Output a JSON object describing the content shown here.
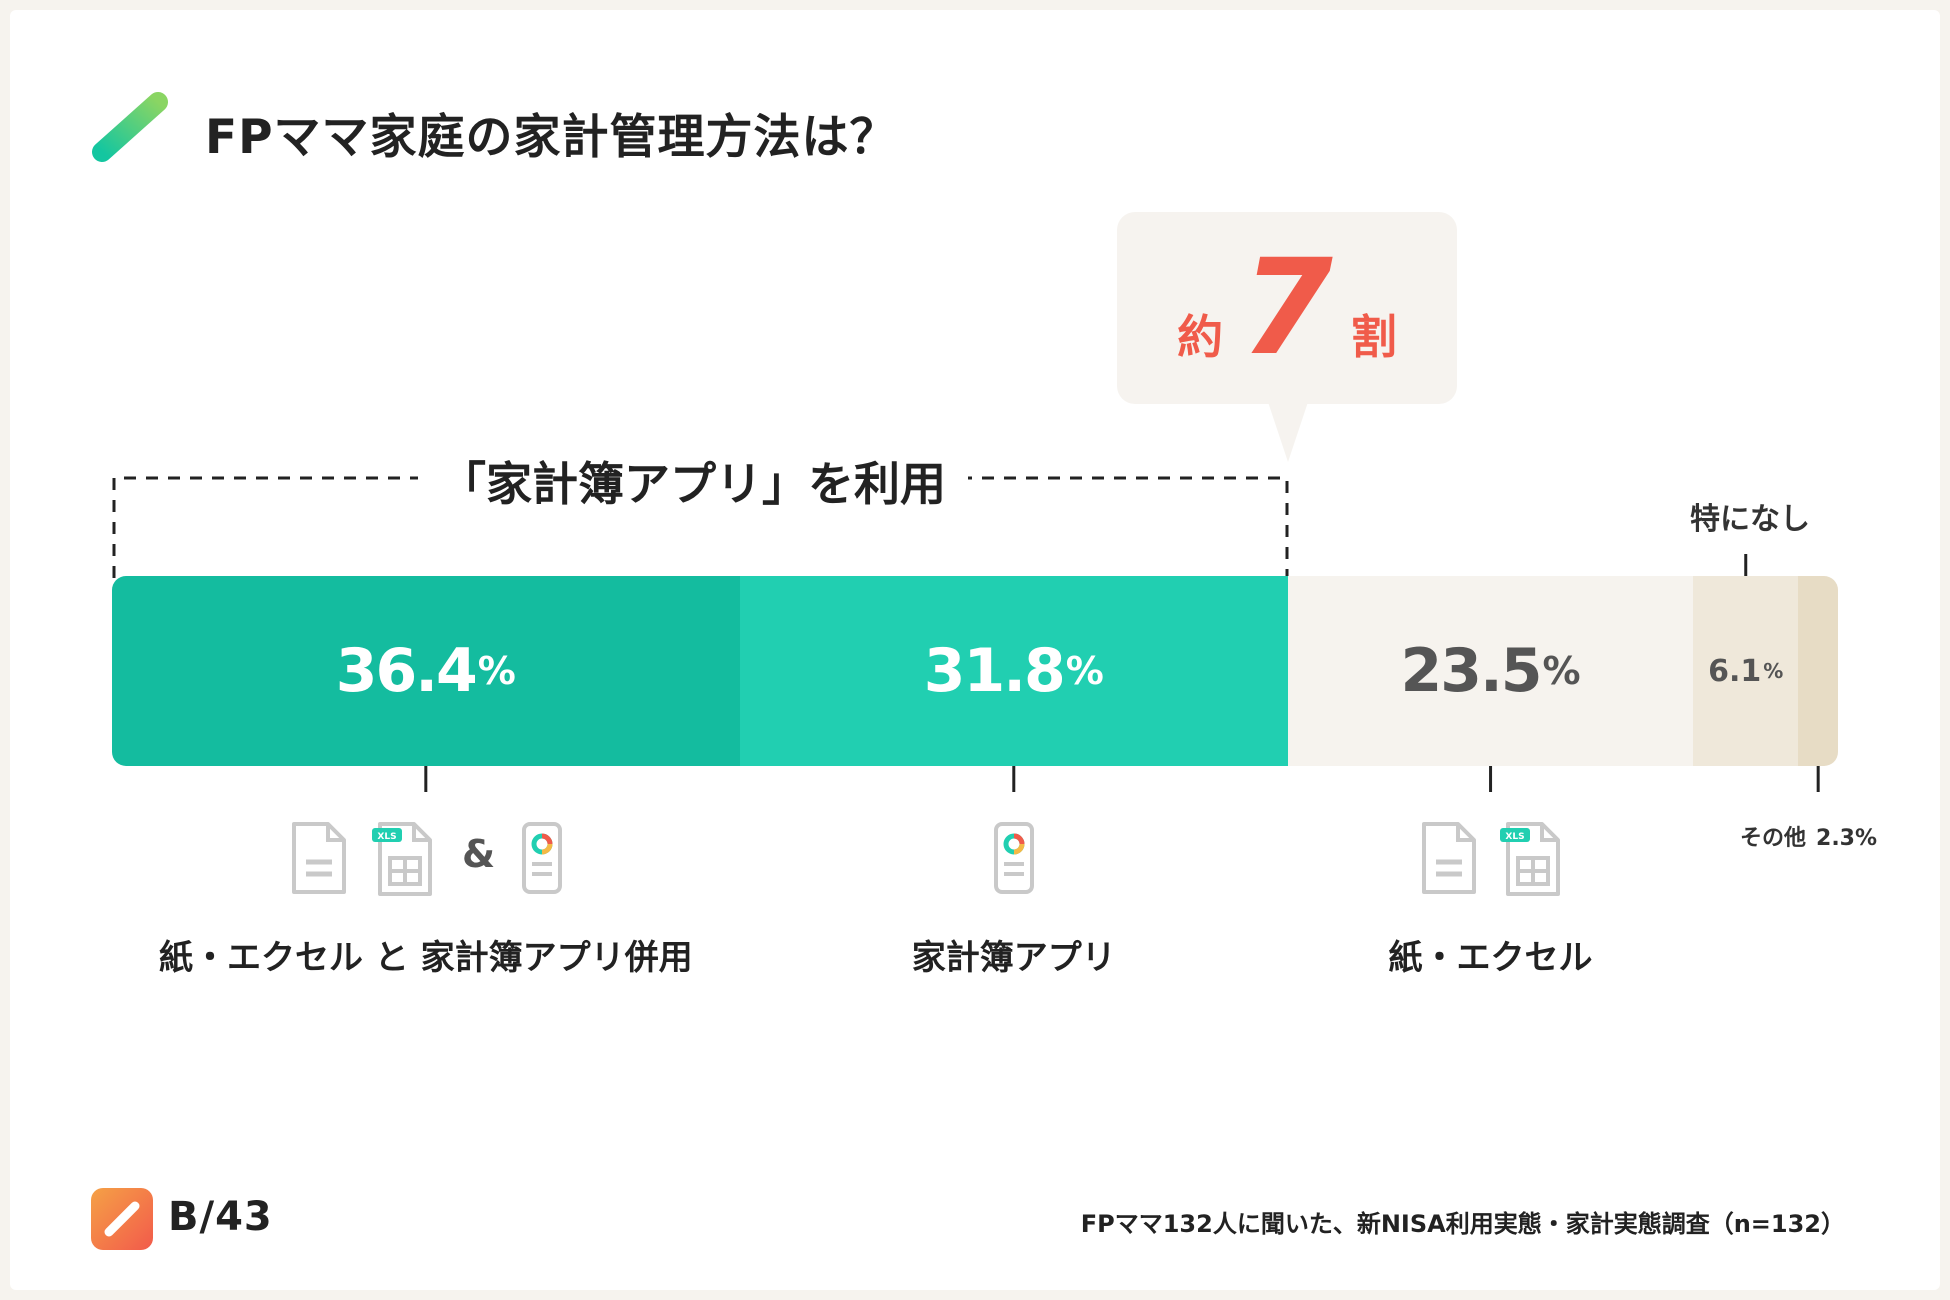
{
  "title": "FPママ家庭の家計管理方法は？",
  "callout": {
    "prefix": "約",
    "number": "7",
    "suffix": "割"
  },
  "bracket_label": "「家計簿アプリ」を利用",
  "chart_data": {
    "type": "bar",
    "orientation": "horizontal-stacked",
    "unit": "%",
    "series": [
      {
        "name": "紙・エクセル と 家計簿アプリ併用",
        "value": 36.4
      },
      {
        "name": "家計簿アプリ",
        "value": 31.8
      },
      {
        "name": "紙・エクセル",
        "value": 23.5
      },
      {
        "name": "特になし",
        "value": 6.1
      },
      {
        "name": "その他",
        "value": 2.3
      }
    ],
    "value_labels": [
      "36.4",
      "31.8",
      "23.5",
      "6.1",
      "2.3"
    ],
    "percent_sign": "%",
    "colors": [
      "#14bc9f",
      "#21cfb1",
      "#f6f3ee",
      "#efe8da",
      "#e7dcc5"
    ]
  },
  "icons": {
    "paper": "document-icon",
    "excel": "xls-spreadsheet-icon",
    "app": "phone-app-icon",
    "xls_tag": "XLS",
    "ampersand": "&"
  },
  "brand": {
    "name": "B/43",
    "logo": "b43-logo-icon",
    "accent": "#f25a4b"
  },
  "source": "FPママ132人に聞いた、新NISA利用実態・家計実態調査（n=132）"
}
